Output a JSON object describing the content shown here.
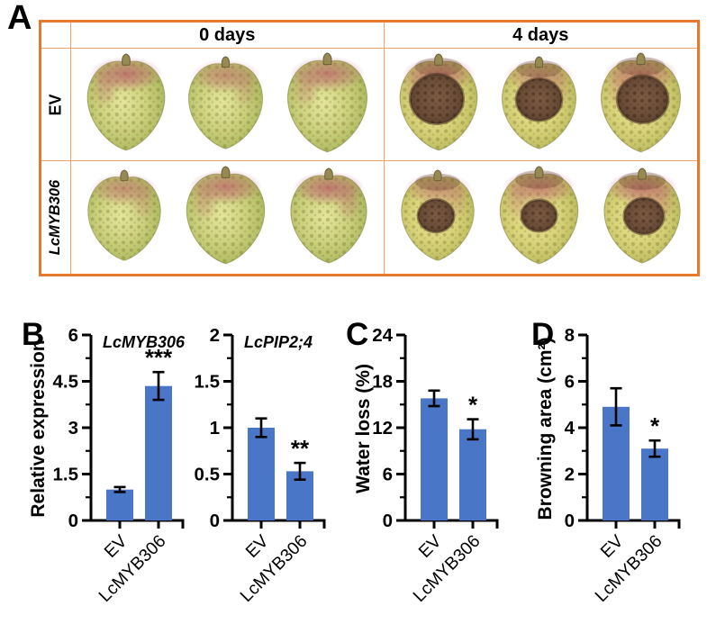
{
  "panel_a": {
    "letter": "A",
    "border_color": "#e8792c",
    "grid_line_color": "#f3a263",
    "columns": [
      "0 days",
      "4 days"
    ],
    "rows": [
      {
        "label": "EV",
        "italic": false,
        "cells": [
          {
            "condition": "0 days",
            "fruit_count": 3,
            "browning": false,
            "browning_size": "none"
          },
          {
            "condition": "4 days",
            "fruit_count": 3,
            "browning": true,
            "browning_size": "large"
          }
        ]
      },
      {
        "label": "LcMYB306",
        "italic": true,
        "cells": [
          {
            "condition": "0 days",
            "fruit_count": 3,
            "browning": false,
            "browning_size": "none"
          },
          {
            "condition": "4 days",
            "fruit_count": 3,
            "browning": true,
            "browning_size": "medium"
          }
        ]
      }
    ]
  },
  "colors": {
    "bar": "#4a76c8",
    "axis": "#000000",
    "error_bar": "#000000"
  },
  "chart_data": [
    {
      "panel_letter": "B",
      "type": "bar",
      "title": "LcMYB306",
      "title_italic": true,
      "ylabel": "Relative expression",
      "categories": [
        "EV",
        "LcMYB306"
      ],
      "values": [
        1.0,
        4.35
      ],
      "errors": [
        0.08,
        0.45
      ],
      "significance": [
        "",
        "***"
      ],
      "yticks": [
        0,
        1.5,
        3,
        4.5,
        6
      ],
      "ylim": [
        0,
        6
      ],
      "minor_ticks": true,
      "legend": "none",
      "grid": false
    },
    {
      "panel_letter": "",
      "type": "bar",
      "title": "LcPIP2;4",
      "title_italic": true,
      "ylabel": "",
      "categories": [
        "EV",
        "LcMYB306"
      ],
      "values": [
        1.0,
        0.53
      ],
      "errors": [
        0.1,
        0.09
      ],
      "significance": [
        "",
        "**"
      ],
      "yticks": [
        0,
        0.5,
        1,
        1.5,
        2
      ],
      "ylim": [
        0,
        2
      ],
      "minor_ticks": true,
      "legend": "none",
      "grid": false
    },
    {
      "panel_letter": "C",
      "type": "bar",
      "title": "",
      "title_italic": false,
      "ylabel": "Water loss (%)",
      "categories": [
        "EV",
        "LcMYB306"
      ],
      "values": [
        15.8,
        11.8
      ],
      "errors": [
        1.0,
        1.3
      ],
      "significance": [
        "",
        "*"
      ],
      "yticks": [
        0,
        6,
        12,
        18,
        24
      ],
      "ylim": [
        0,
        24
      ],
      "minor_ticks": true,
      "legend": "none",
      "grid": false
    },
    {
      "panel_letter": "D",
      "type": "bar",
      "title": "",
      "title_italic": false,
      "ylabel": "Browning area (cm²)",
      "categories": [
        "EV",
        "LcMYB306"
      ],
      "values": [
        4.9,
        3.1
      ],
      "errors": [
        0.8,
        0.35
      ],
      "significance": [
        "",
        "*"
      ],
      "yticks": [
        0,
        2,
        4,
        6,
        8
      ],
      "ylim": [
        0,
        8
      ],
      "minor_ticks": true,
      "legend": "none",
      "grid": false
    }
  ]
}
